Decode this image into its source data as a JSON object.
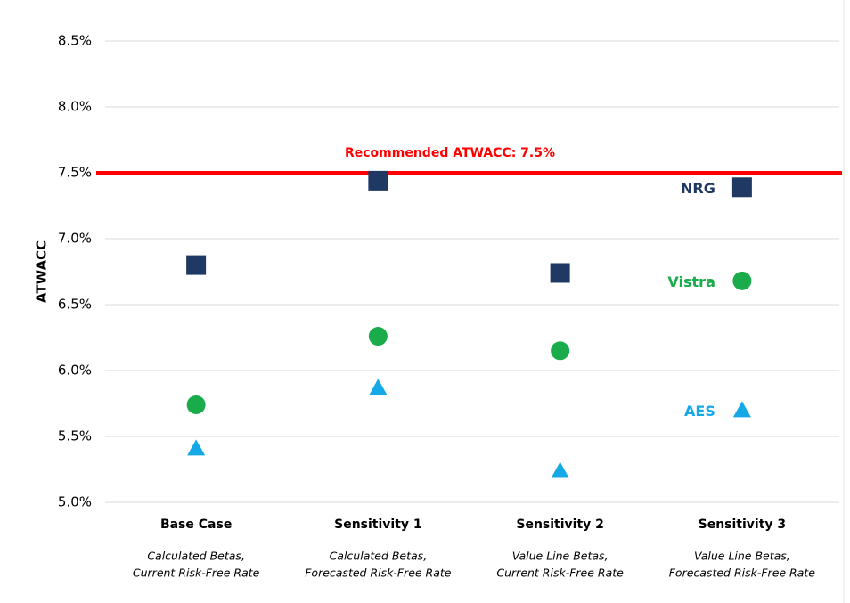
{
  "chart_data": {
    "type": "scatter",
    "y_label": "ATWACC",
    "categories": [
      "Base Case",
      "Sensitivity 1",
      "Sensitivity 2",
      "Sensitivity 3"
    ],
    "category_notes": [
      [
        "Calculated Betas,",
        "Current Risk-Free Rate"
      ],
      [
        "Calculated Betas,",
        "Forecasted Risk-Free Rate"
      ],
      [
        "Value Line Betas,",
        "Current Risk-Free Rate"
      ],
      [
        "Value Line Betas,",
        "Forecasted Risk-Free Rate"
      ]
    ],
    "series": [
      {
        "name": "NRG",
        "color": "#1f3864",
        "marker": "square",
        "values": [
          6.8,
          7.44,
          6.74,
          7.39
        ]
      },
      {
        "name": "Vistra",
        "color": "#1aab4b",
        "marker": "circle",
        "values": [
          5.74,
          6.26,
          6.15,
          6.68
        ]
      },
      {
        "name": "AES",
        "color": "#14a9e6",
        "marker": "triangle",
        "values": [
          5.41,
          5.87,
          5.24,
          5.7
        ]
      }
    ],
    "reference_line": {
      "value": 7.5,
      "label": "Recommended ATWACC: 7.5%",
      "color": "#ff0000"
    },
    "ylim": [
      5.0,
      8.5
    ],
    "yticks": [
      {
        "value": 5.0,
        "label": "5.0%"
      },
      {
        "value": 5.5,
        "label": "5.5%"
      },
      {
        "value": 6.0,
        "label": "6.0%"
      },
      {
        "value": 6.5,
        "label": "6.5%"
      },
      {
        "value": 7.0,
        "label": "7.0%"
      },
      {
        "value": 7.5,
        "label": "7.5%"
      },
      {
        "value": 8.0,
        "label": "8.0%"
      },
      {
        "value": 8.5,
        "label": "8.5%"
      }
    ],
    "grid": true
  }
}
